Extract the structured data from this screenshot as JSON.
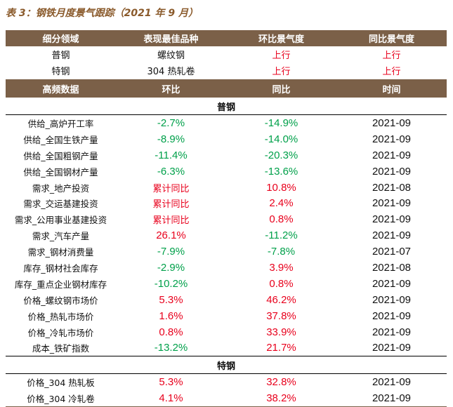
{
  "title": "表 3：钢铁月度景气跟踪（2021 年 9 月）",
  "colors": {
    "header_bg": "#7b6048",
    "title": "#8a5a2b",
    "up": "#e8001c",
    "down": "#00a04a"
  },
  "summary": {
    "headers": [
      "细分领域",
      "表现最佳品种",
      "环比景气度",
      "同比景气度"
    ],
    "rows": [
      {
        "sector": "普钢",
        "best": "螺纹钢",
        "mom": "上行",
        "yoy": "上行"
      },
      {
        "sector": "特钢",
        "best": "304 热轧卷",
        "mom": "上行",
        "yoy": "上行"
      }
    ]
  },
  "detail": {
    "headers": [
      "高频数据",
      "环比",
      "同比",
      "时间"
    ],
    "sections": [
      {
        "name": "普钢",
        "rows": [
          {
            "label": "供给_高炉开工率",
            "mom": "-2.7%",
            "yoy": "-14.9%",
            "date": "2021-09"
          },
          {
            "label": "供给_全国生铁产量",
            "mom": "-8.9%",
            "yoy": "-14.0%",
            "date": "2021-09"
          },
          {
            "label": "供给_全国粗钢产量",
            "mom": "-11.4%",
            "yoy": "-20.3%",
            "date": "2021-09"
          },
          {
            "label": "供给_全国钢材产量",
            "mom": "-6.3%",
            "yoy": "-13.6%",
            "date": "2021-09"
          },
          {
            "label": "需求_地产投资",
            "mom": "累计同比",
            "yoy": "10.8%",
            "date": "2021-08"
          },
          {
            "label": "需求_交运基建投资",
            "mom": "累计同比",
            "yoy": "2.4%",
            "date": "2021-09"
          },
          {
            "label": "需求_公用事业基建投资",
            "mom": "累计同比",
            "yoy": "0.8%",
            "date": "2021-09"
          },
          {
            "label": "需求_汽车产量",
            "mom": "26.1%",
            "yoy": "-11.2%",
            "date": "2021-09"
          },
          {
            "label": "需求_钢材消费量",
            "mom": "-7.9%",
            "yoy": "-7.8%",
            "date": "2021-07"
          },
          {
            "label": "库存_钢材社会库存",
            "mom": "-2.9%",
            "yoy": "3.9%",
            "date": "2021-08"
          },
          {
            "label": "库存_重点企业钢材库存",
            "mom": "-10.2%",
            "yoy": "0.8%",
            "date": "2021-09"
          },
          {
            "label": "价格_螺纹钢市场价",
            "mom": "5.3%",
            "yoy": "46.2%",
            "date": "2021-09"
          },
          {
            "label": "价格_热轧市场价",
            "mom": "1.6%",
            "yoy": "37.8%",
            "date": "2021-09"
          },
          {
            "label": "价格_冷轧市场价",
            "mom": "0.8%",
            "yoy": "33.9%",
            "date": "2021-09"
          },
          {
            "label": "成本_铁矿指数",
            "mom": "-13.2%",
            "yoy": "21.7%",
            "date": "2021-09"
          }
        ]
      },
      {
        "name": "特钢",
        "rows": [
          {
            "label": "价格_304 热轧板",
            "mom": "5.3%",
            "yoy": "32.8%",
            "date": "2021-09"
          },
          {
            "label": "价格_304 冷轧卷",
            "mom": "4.1%",
            "yoy": "38.2%",
            "date": "2021-09"
          }
        ]
      }
    ]
  }
}
